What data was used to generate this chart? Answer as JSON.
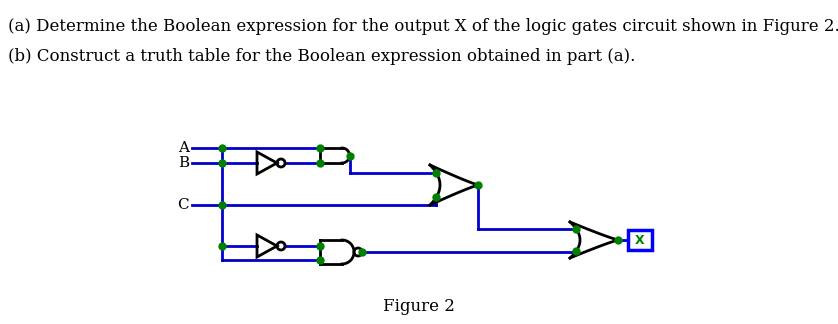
{
  "text_a": "(a) Determine the Boolean expression for the output X of the logic gates circuit shown in Figure 2.",
  "text_b": "(b) Construct a truth table for the Boolean expression obtained in part (a).",
  "figure_label": "Figure 2",
  "bg_color": "#ffffff",
  "wire_color": "#0000cc",
  "gate_color": "#000000",
  "dot_color": "#008000",
  "output_box_color": "#0000ff",
  "output_text_color": "#008000",
  "text_color": "#000000",
  "font_size_text": 12,
  "font_size_label": 12
}
